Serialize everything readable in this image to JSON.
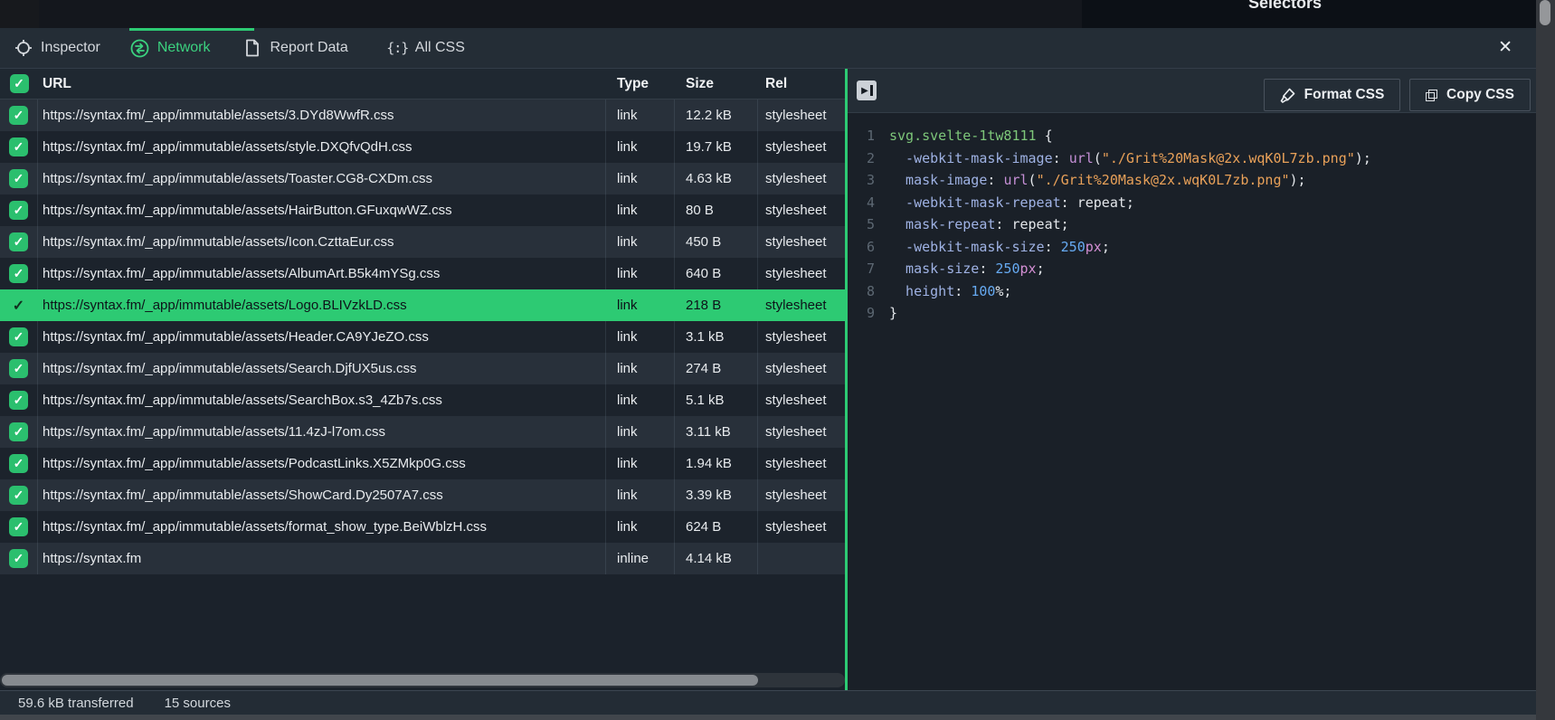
{
  "page": {
    "behind_title": "Selectors"
  },
  "colors": {
    "accent_green": "#2dca73",
    "tab_active_green": "#3bd27f",
    "checkbox_green": "#2bbf6e",
    "selected_row_bg": "#2dca73",
    "code_selector": "#7ec77a",
    "code_property": "#9fb2e4",
    "code_function": "#c58fd6",
    "code_string": "#e9a159",
    "code_number": "#66aaf2",
    "code_unit": "#d48fd4"
  },
  "tabs": [
    {
      "label": "Inspector",
      "icon": "crosshair-icon",
      "active": false
    },
    {
      "label": "Network",
      "icon": "transfer-arrows-icon",
      "active": true
    },
    {
      "label": "Report Data",
      "icon": "document-icon",
      "active": false
    },
    {
      "label": "All CSS",
      "icon": "braces-icon",
      "active": false
    }
  ],
  "braces_icon_glyph": "{:}",
  "close_button_icon": "✕",
  "checkbox_glyph": "✓",
  "expand_icon_glyph": "▶",
  "table": {
    "headers": [
      "URL",
      "Type",
      "Size",
      "Rel"
    ],
    "rows": [
      {
        "url": "https://syntax.fm/_app/immutable/assets/3.DYd8WwfR.css",
        "type": "link",
        "size": "12.2 kB",
        "rel": "stylesheet",
        "selected": false
      },
      {
        "url": "https://syntax.fm/_app/immutable/assets/style.DXQfvQdH.css",
        "type": "link",
        "size": "19.7 kB",
        "rel": "stylesheet",
        "selected": false
      },
      {
        "url": "https://syntax.fm/_app/immutable/assets/Toaster.CG8-CXDm.css",
        "type": "link",
        "size": "4.63 kB",
        "rel": "stylesheet",
        "selected": false
      },
      {
        "url": "https://syntax.fm/_app/immutable/assets/HairButton.GFuxqwWZ.css",
        "type": "link",
        "size": "80 B",
        "rel": "stylesheet",
        "selected": false
      },
      {
        "url": "https://syntax.fm/_app/immutable/assets/Icon.CzttaEur.css",
        "type": "link",
        "size": "450 B",
        "rel": "stylesheet",
        "selected": false
      },
      {
        "url": "https://syntax.fm/_app/immutable/assets/AlbumArt.B5k4mYSg.css",
        "type": "link",
        "size": "640 B",
        "rel": "stylesheet",
        "selected": false
      },
      {
        "url": "https://syntax.fm/_app/immutable/assets/Logo.BLIVzkLD.css",
        "type": "link",
        "size": "218 B",
        "rel": "stylesheet",
        "selected": true
      },
      {
        "url": "https://syntax.fm/_app/immutable/assets/Header.CA9YJeZO.css",
        "type": "link",
        "size": "3.1 kB",
        "rel": "stylesheet",
        "selected": false
      },
      {
        "url": "https://syntax.fm/_app/immutable/assets/Search.DjfUX5us.css",
        "type": "link",
        "size": "274 B",
        "rel": "stylesheet",
        "selected": false
      },
      {
        "url": "https://syntax.fm/_app/immutable/assets/SearchBox.s3_4Zb7s.css",
        "type": "link",
        "size": "5.1 kB",
        "rel": "stylesheet",
        "selected": false
      },
      {
        "url": "https://syntax.fm/_app/immutable/assets/11.4zJ-l7om.css",
        "type": "link",
        "size": "3.11 kB",
        "rel": "stylesheet",
        "selected": false
      },
      {
        "url": "https://syntax.fm/_app/immutable/assets/PodcastLinks.X5ZMkp0G.css",
        "type": "link",
        "size": "1.94 kB",
        "rel": "stylesheet",
        "selected": false
      },
      {
        "url": "https://syntax.fm/_app/immutable/assets/ShowCard.Dy2507A7.css",
        "type": "link",
        "size": "3.39 kB",
        "rel": "stylesheet",
        "selected": false
      },
      {
        "url": "https://syntax.fm/_app/immutable/assets/format_show_type.BeiWblzH.css",
        "type": "link",
        "size": "624 B",
        "rel": "stylesheet",
        "selected": false
      },
      {
        "url": "https://syntax.fm",
        "type": "inline",
        "size": "4.14 kB",
        "rel": "",
        "selected": false
      }
    ]
  },
  "code_panel": {
    "buttons": [
      {
        "label": "Format CSS",
        "icon": "brush-icon"
      },
      {
        "label": "Copy CSS",
        "icon": "copy-icon"
      }
    ],
    "code_lines": [
      [
        {
          "c": "s",
          "t": "svg.svelte-1tw8111"
        },
        {
          "c": "x",
          "t": " {"
        }
      ],
      [
        {
          "c": "p",
          "t": "  -webkit-mask-image"
        },
        {
          "c": "x",
          "t": ": "
        },
        {
          "c": "f",
          "t": "url"
        },
        {
          "c": "x",
          "t": "("
        },
        {
          "c": "st",
          "t": "\"./Grit%20Mask@2x.wqK0L7zb.png\""
        },
        {
          "c": "x",
          "t": ");"
        }
      ],
      [
        {
          "c": "p",
          "t": "  mask-image"
        },
        {
          "c": "x",
          "t": ": "
        },
        {
          "c": "f",
          "t": "url"
        },
        {
          "c": "x",
          "t": "("
        },
        {
          "c": "st",
          "t": "\"./Grit%20Mask@2x.wqK0L7zb.png\""
        },
        {
          "c": "x",
          "t": ");"
        }
      ],
      [
        {
          "c": "p",
          "t": "  -webkit-mask-repeat"
        },
        {
          "c": "x",
          "t": ": repeat;"
        }
      ],
      [
        {
          "c": "p",
          "t": "  mask-repeat"
        },
        {
          "c": "x",
          "t": ": repeat;"
        }
      ],
      [
        {
          "c": "p",
          "t": "  -webkit-mask-size"
        },
        {
          "c": "x",
          "t": ": "
        },
        {
          "c": "n",
          "t": "250"
        },
        {
          "c": "u",
          "t": "px"
        },
        {
          "c": "x",
          "t": ";"
        }
      ],
      [
        {
          "c": "p",
          "t": "  mask-size"
        },
        {
          "c": "x",
          "t": ": "
        },
        {
          "c": "n",
          "t": "250"
        },
        {
          "c": "u",
          "t": "px"
        },
        {
          "c": "x",
          "t": ";"
        }
      ],
      [
        {
          "c": "p",
          "t": "  height"
        },
        {
          "c": "x",
          "t": ": "
        },
        {
          "c": "n",
          "t": "100"
        },
        {
          "c": "x",
          "t": "%;"
        }
      ],
      [
        {
          "c": "x",
          "t": "}"
        }
      ]
    ]
  },
  "status_bar": {
    "transferred": "59.6 kB transferred",
    "sources": "15 sources"
  }
}
